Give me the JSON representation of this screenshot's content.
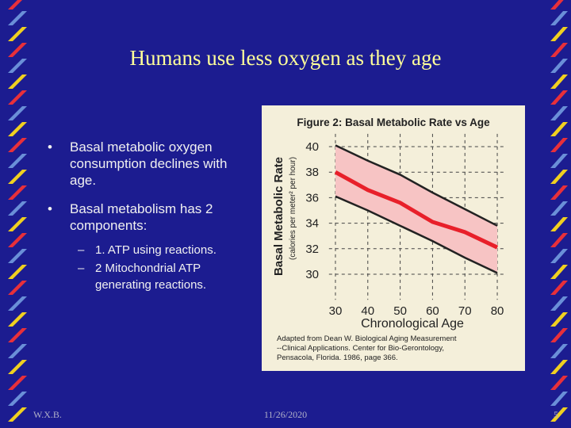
{
  "slide": {
    "title": "Humans use less oxygen as they age",
    "bullets": [
      "Basal metabolic oxygen consumption declines with age.",
      "Basal metabolism has 2 components:"
    ],
    "sub_bullets": [
      "1. ATP using reactions.",
      "2 Mitochondrial ATP generating reactions."
    ],
    "footer": {
      "left": "W.X.B.",
      "center": "11/26/2020",
      "right": "5"
    }
  },
  "chart_data": {
    "type": "line",
    "title": "Figure 2: Basal Metabolic Rate vs Age",
    "y_label": "Basal Metabolic Rate",
    "y_sublabel": "(calories per meter² per hour)",
    "x_label": "Chronological Age",
    "caption": [
      "Adapted from Dean W. Biological Aging Measurement",
      "--Clinical Applications. Center for Bio-Gerontology,",
      "Pensacola, Florida. 1986, page 366."
    ],
    "x": [
      30,
      40,
      50,
      60,
      70,
      80
    ],
    "series": [
      {
        "name": "Upper",
        "color": "#222222",
        "values": [
          40.1,
          38.9,
          37.8,
          36.4,
          35.1,
          33.8
        ]
      },
      {
        "name": "Mean",
        "color": "#e8202a",
        "values": [
          38.0,
          36.6,
          35.6,
          34.1,
          33.3,
          32.1
        ]
      },
      {
        "name": "Lower",
        "color": "#222222",
        "values": [
          36.1,
          35.0,
          33.8,
          32.6,
          31.3,
          30.1
        ]
      }
    ],
    "band_color": "#f7c4c4",
    "xlim": [
      28,
      82
    ],
    "ylim": [
      28,
      41
    ],
    "xticks": [
      30,
      40,
      50,
      60,
      70,
      80
    ],
    "yticks": [
      30,
      32,
      34,
      36,
      38,
      40
    ],
    "grid": true
  }
}
